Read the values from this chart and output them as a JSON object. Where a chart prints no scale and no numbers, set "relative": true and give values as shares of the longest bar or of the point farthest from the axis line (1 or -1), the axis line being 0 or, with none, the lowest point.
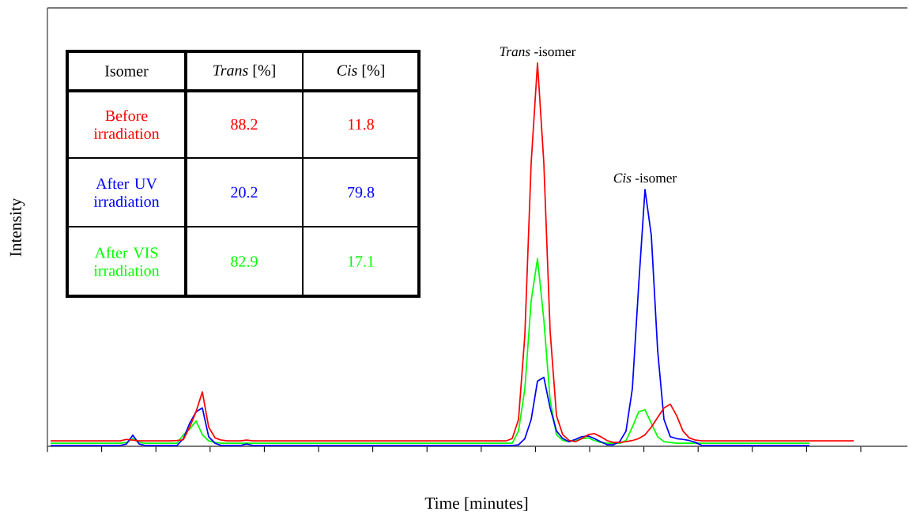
{
  "chart_data": {
    "type": "line",
    "relative": true,
    "xlabel": "Time [minutes]",
    "ylabel": "Intensity",
    "categories": [
      null,
      null,
      null,
      null,
      null,
      null,
      null,
      null,
      null,
      null,
      null,
      null,
      null,
      null,
      null,
      null,
      null,
      null,
      null,
      null,
      null,
      null,
      null,
      null,
      null,
      null,
      null,
      null,
      null,
      null,
      null,
      null,
      null,
      null,
      null,
      null,
      null,
      null,
      null,
      null,
      null,
      null,
      null,
      null,
      null,
      null,
      null,
      null,
      null,
      null,
      null,
      null,
      null,
      null,
      null,
      null,
      null,
      null,
      null,
      null,
      null,
      null,
      null,
      null,
      null,
      null,
      null,
      null,
      null,
      null,
      null,
      null,
      null,
      null,
      null,
      null,
      null,
      null,
      null,
      null,
      null,
      null,
      null,
      null,
      null,
      null,
      null,
      null,
      null,
      null,
      null,
      null,
      null,
      null,
      null,
      null,
      null,
      null,
      null,
      null,
      null,
      null,
      null,
      null,
      null,
      null,
      null,
      null,
      null,
      null,
      null,
      null,
      null,
      null,
      null,
      null,
      null,
      null,
      null,
      null,
      null,
      null,
      null,
      null,
      null,
      null,
      null,
      null
    ],
    "series": [
      {
        "name": "Before irradiation",
        "color": "#ff0000",
        "values": [
          0.014,
          0.014,
          0.014,
          0.014,
          0.014,
          0.014,
          0.014,
          0.014,
          0.014,
          0.014,
          0.014,
          0.014,
          0.018,
          0.016,
          0.014,
          0.014,
          0.014,
          0.014,
          0.014,
          0.014,
          0.015,
          0.017,
          0.05,
          0.09,
          0.142,
          0.05,
          0.022,
          0.016,
          0.014,
          0.014,
          0.014,
          0.016,
          0.014,
          0.014,
          0.014,
          0.014,
          0.014,
          0.014,
          0.014,
          0.014,
          0.014,
          0.014,
          0.014,
          0.014,
          0.014,
          0.014,
          0.014,
          0.014,
          0.014,
          0.014,
          0.014,
          0.014,
          0.014,
          0.014,
          0.014,
          0.014,
          0.014,
          0.014,
          0.014,
          0.014,
          0.014,
          0.014,
          0.014,
          0.014,
          0.014,
          0.014,
          0.014,
          0.014,
          0.014,
          0.014,
          0.014,
          0.014,
          0.014,
          0.02,
          0.07,
          0.29,
          0.74,
          1,
          0.74,
          0.3,
          0.08,
          0.03,
          0.015,
          0.012,
          0.02,
          0.03,
          0.033,
          0.025,
          0.015,
          0.01,
          0.01,
          0.012,
          0.015,
          0.02,
          0.03,
          0.05,
          0.075,
          0.1,
          0.11,
          0.08,
          0.04,
          0.022,
          0.016,
          0.014,
          0.014,
          0.014,
          0.014,
          0.014,
          0.014,
          0.014,
          0.014,
          0.014,
          0.014,
          0.014,
          0.014,
          0.014,
          0.014,
          0.014,
          0.014,
          0.014,
          0.014,
          0.014,
          0.014,
          0.014,
          0.014,
          0.014,
          0.014,
          0.014
        ]
      },
      {
        "name": "After UV irradiation",
        "color": "#0000ff",
        "values": [
          0.002,
          0.002,
          0.002,
          0.002,
          0.002,
          0.002,
          0.002,
          0.002,
          0.002,
          0.002,
          0.002,
          0.002,
          0.006,
          0.029,
          0.006,
          0.002,
          0.002,
          0.002,
          0.002,
          0.002,
          0.002,
          0.02,
          0.06,
          0.09,
          0.1,
          0.025,
          0.008,
          0.002,
          0.002,
          0.002,
          0.002,
          0.006,
          0.002,
          0.002,
          0.002,
          0.002,
          0.002,
          0.002,
          0.002,
          0.002,
          0.002,
          0.002,
          0.002,
          0.002,
          0.002,
          0.002,
          0.002,
          0.002,
          0.002,
          0.002,
          0.002,
          0.002,
          0.002,
          0.002,
          0.002,
          0.002,
          0.002,
          0.002,
          0.002,
          0.002,
          0.002,
          0.002,
          0.002,
          0.002,
          0.002,
          0.002,
          0.002,
          0.002,
          0.002,
          0.002,
          0.002,
          0.002,
          0.002,
          0.002,
          0.004,
          0.02,
          0.07,
          0.17,
          0.18,
          0.1,
          0.04,
          0.02,
          0.012,
          0.018,
          0.025,
          0.027,
          0.02,
          0.012,
          0.004,
          0.004,
          0.012,
          0.04,
          0.15,
          0.42,
          0.67,
          0.55,
          0.25,
          0.07,
          0.025,
          0.02,
          0.018,
          0.015,
          0.01,
          0.002,
          0.002,
          0.002,
          0.002,
          0.002,
          0.002,
          0.002,
          0.002,
          0.002,
          0.002,
          0.002,
          0.002,
          0.002,
          0.002,
          0.002,
          0.002,
          0.002,
          0.002,
          null,
          null,
          null,
          null,
          null,
          null,
          null
        ]
      },
      {
        "name": "After VIS irradiation",
        "color": "#00ff00",
        "values": [
          0.008,
          0.008,
          0.008,
          0.008,
          0.008,
          0.008,
          0.008,
          0.008,
          0.008,
          0.008,
          0.008,
          0.008,
          0.01,
          0.02,
          0.01,
          0.008,
          0.008,
          0.008,
          0.008,
          0.008,
          0.008,
          0.03,
          0.045,
          0.066,
          0.03,
          0.014,
          0.01,
          0.008,
          0.008,
          0.008,
          0.008,
          0.008,
          0.008,
          0.008,
          0.008,
          0.008,
          0.008,
          0.008,
          0.008,
          0.008,
          0.008,
          0.008,
          0.008,
          0.008,
          0.008,
          0.008,
          0.008,
          0.008,
          0.008,
          0.008,
          0.008,
          0.008,
          0.008,
          0.008,
          0.008,
          0.008,
          0.008,
          0.008,
          0.008,
          0.008,
          0.008,
          0.008,
          0.008,
          0.008,
          0.008,
          0.008,
          0.008,
          0.008,
          0.008,
          0.008,
          0.008,
          0.008,
          0.008,
          0.008,
          0.04,
          0.15,
          0.38,
          0.49,
          0.33,
          0.12,
          0.03,
          0.015,
          0.012,
          0.015,
          0.02,
          0.022,
          0.015,
          0.01,
          0.008,
          0.008,
          0.008,
          0.015,
          0.05,
          0.09,
          0.095,
          0.06,
          0.025,
          0.012,
          0.01,
          0.008,
          0.008,
          0.008,
          0.008,
          0.008,
          0.008,
          0.008,
          0.008,
          0.008,
          0.008,
          0.008,
          0.008,
          0.008,
          0.008,
          0.008,
          0.008,
          0.008,
          0.008,
          0.008,
          0.008,
          0.008,
          0.008,
          null,
          null,
          null,
          null,
          null,
          null,
          null
        ]
      }
    ],
    "annotations": [
      "*Trans* -isomer",
      "*Cis* -isomer",
      "Isomer",
      "*Trans*  [%]",
      "*Cis*  [%]",
      "88.2",
      "11.8",
      "20.2",
      "79.8",
      "82.9",
      "17.1"
    ]
  }
}
